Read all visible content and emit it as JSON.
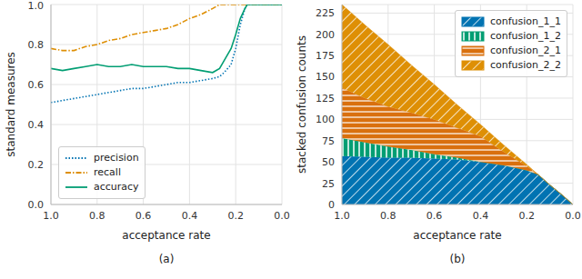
{
  "chart_data": [
    {
      "type": "line",
      "caption": "(a)",
      "x_label": "acceptance rate",
      "y_label": "standard measures",
      "x": [
        1.0,
        0.95,
        0.9,
        0.85,
        0.8,
        0.75,
        0.7,
        0.65,
        0.6,
        0.55,
        0.5,
        0.45,
        0.4,
        0.35,
        0.3,
        0.27,
        0.25,
        0.22,
        0.2,
        0.18,
        0.16,
        0.15,
        0.1,
        0.05,
        0.0
      ],
      "xlim": [
        1.0,
        0.0
      ],
      "xticks": [
        {
          "value": 1,
          "label": "1.0"
        },
        {
          "value": 0.8,
          "label": "0.8"
        },
        {
          "value": 0.6,
          "label": "0.6"
        },
        {
          "value": 0.4,
          "label": "0.4"
        },
        {
          "value": 0.2,
          "label": "0.2"
        },
        {
          "value": 0,
          "label": "0.0"
        }
      ],
      "ylim": [
        0,
        1
      ],
      "yticks": [
        {
          "value": 0,
          "label": "0.0"
        },
        {
          "value": 0.2,
          "label": "0.2"
        },
        {
          "value": 0.4,
          "label": "0.4"
        },
        {
          "value": 0.6,
          "label": "0.6"
        },
        {
          "value": 0.8,
          "label": "0.8"
        },
        {
          "value": 1,
          "label": "1.0"
        }
      ],
      "grid": true,
      "legend": "lower left",
      "series": [
        {
          "name": "precision",
          "color": "#0173b2",
          "line_style": "dotted",
          "values": [
            0.51,
            0.52,
            0.53,
            0.54,
            0.55,
            0.56,
            0.57,
            0.58,
            0.58,
            0.59,
            0.6,
            0.61,
            0.61,
            0.62,
            0.63,
            0.64,
            0.66,
            0.7,
            0.78,
            0.9,
            0.98,
            1,
            1,
            1,
            1
          ]
        },
        {
          "name": "recall",
          "color": "#de8f05",
          "line_style": "dashdot",
          "values": [
            0.78,
            0.77,
            0.77,
            0.79,
            0.8,
            0.82,
            0.83,
            0.85,
            0.86,
            0.87,
            0.88,
            0.9,
            0.93,
            0.95,
            0.98,
            1,
            1,
            1,
            1,
            1,
            1,
            1,
            1,
            1,
            1
          ]
        },
        {
          "name": "accuracy",
          "color": "#029e73",
          "line_style": "solid",
          "values": [
            0.68,
            0.67,
            0.68,
            0.69,
            0.7,
            0.69,
            0.69,
            0.7,
            0.69,
            0.69,
            0.69,
            0.68,
            0.68,
            0.67,
            0.66,
            0.68,
            0.72,
            0.78,
            0.85,
            0.93,
            0.98,
            1,
            1,
            1,
            1
          ]
        }
      ]
    },
    {
      "type": "area",
      "caption": "(b)",
      "x_label": "acceptance rate",
      "y_label": "stacked confusion counts",
      "x": [
        1.0,
        0.9,
        0.8,
        0.7,
        0.6,
        0.5,
        0.4,
        0.3,
        0.2,
        0.15,
        0.1,
        0.05,
        0.0
      ],
      "xlim": [
        1.0,
        0.0
      ],
      "xticks": [
        {
          "value": 1,
          "label": "1.0"
        },
        {
          "value": 0.8,
          "label": "0.8"
        },
        {
          "value": 0.6,
          "label": "0.6"
        },
        {
          "value": 0.4,
          "label": "0.4"
        },
        {
          "value": 0.2,
          "label": "0.2"
        },
        {
          "value": 0,
          "label": "0.0"
        }
      ],
      "ylim": [
        0,
        235
      ],
      "yticks": [
        0,
        25,
        50,
        75,
        100,
        125,
        150,
        175,
        200,
        225
      ],
      "grid": true,
      "legend": "upper right",
      "stacked": true,
      "series": [
        {
          "name": "confusion_1_1",
          "color": "#0173b2",
          "values": [
            57,
            56,
            55,
            55,
            54,
            53,
            50,
            46,
            40,
            35,
            23,
            12,
            0
          ]
        },
        {
          "name": "confusion_1_2",
          "color": "#029e73",
          "values": [
            21,
            17,
            13,
            9,
            5,
            2,
            0,
            0,
            0,
            0,
            0,
            0,
            0
          ]
        },
        {
          "name": "confusion_2_1",
          "color": "#d9700e",
          "values": [
            59,
            52,
            47,
            44,
            41,
            35,
            30,
            16,
            5,
            0,
            0,
            0,
            0
          ]
        },
        {
          "name": "confusion_2_2",
          "color": "#de8f05",
          "values": [
            98,
            86,
            73,
            56,
            41,
            27,
            14,
            8,
            2,
            0,
            0,
            0,
            0
          ]
        }
      ]
    }
  ]
}
